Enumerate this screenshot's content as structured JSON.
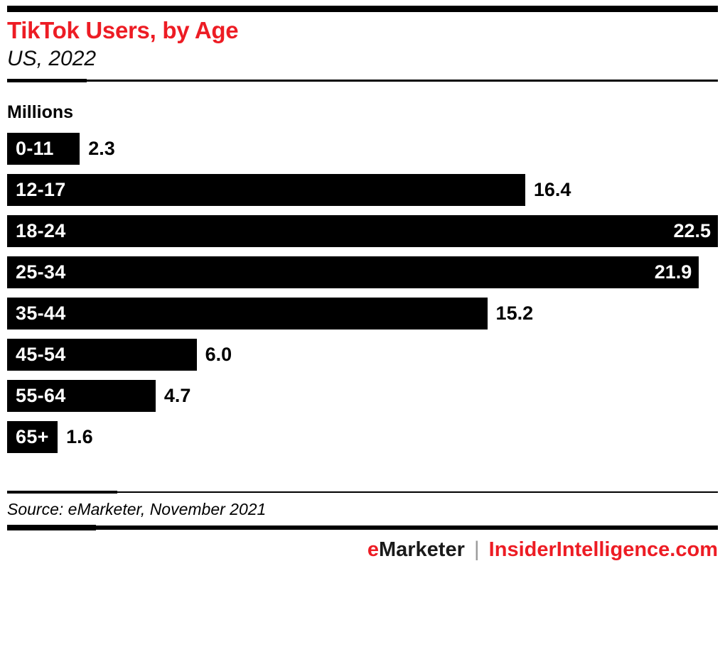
{
  "header": {
    "title": "TikTok Users, by Age",
    "subtitle": "US, 2022"
  },
  "chart": {
    "units": "Millions"
  },
  "chart_data": {
    "type": "bar",
    "orientation": "horizontal",
    "title": "TikTok Users, by Age",
    "subtitle": "US, 2022",
    "units_label": "Millions",
    "categories": [
      "0-11",
      "12-17",
      "18-24",
      "25-34",
      "35-44",
      "45-54",
      "55-64",
      "65+"
    ],
    "values": [
      2.3,
      16.4,
      22.5,
      21.9,
      15.2,
      6.0,
      4.7,
      1.6
    ],
    "xlim": [
      0,
      22.5
    ],
    "value_decimals": 1,
    "value_label_inside_threshold": 20,
    "bar_color": "#000000",
    "inside_label_color": "#ffffff",
    "outside_label_color": "#000000",
    "grid": false,
    "legend": false
  },
  "footer": {
    "source": "Source: eMarketer, November 2021",
    "brand_e": "e",
    "brand_rest": "Marketer",
    "separator": "|",
    "site": "InsiderIntelligence.com"
  },
  "colors": {
    "accent_red": "#ed1c24",
    "bar_black": "#000000",
    "separator_gray": "#9b9b9b"
  }
}
